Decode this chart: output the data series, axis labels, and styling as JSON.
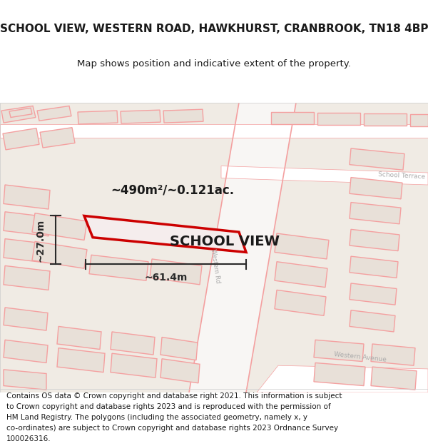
{
  "title": "SCHOOL VIEW, WESTERN ROAD, HAWKHURST, CRANBROOK, TN18 4BP",
  "subtitle": "Map shows position and indicative extent of the property.",
  "footer_lines": [
    "Contains OS data © Crown copyright and database right 2021. This information is subject",
    "to Crown copyright and database rights 2023 and is reproduced with the permission of",
    "HM Land Registry. The polygons (including the associated geometry, namely x, y",
    "co-ordinates) are subject to Crown copyright and database rights 2023 Ordnance Survey",
    "100026316."
  ],
  "area_label": "~490m²/~0.121ac.",
  "width_label": "~61.4m",
  "height_label": "~27.0m",
  "property_label": "SCHOOL VIEW",
  "bg_color": "#f0ebe4",
  "road_color": "#f4a0a0",
  "road_stroke": "#e87878",
  "building_fill": "#e8e0d8",
  "building_stroke": "#f4a0a0",
  "property_stroke": "#cc0000",
  "dim_line_color": "#2a2a2a",
  "text_color": "#1a1a1a",
  "road_label_color": "#aaaaaa",
  "title_fontsize": 11,
  "subtitle_fontsize": 9.5,
  "footer_fontsize": 7.5
}
